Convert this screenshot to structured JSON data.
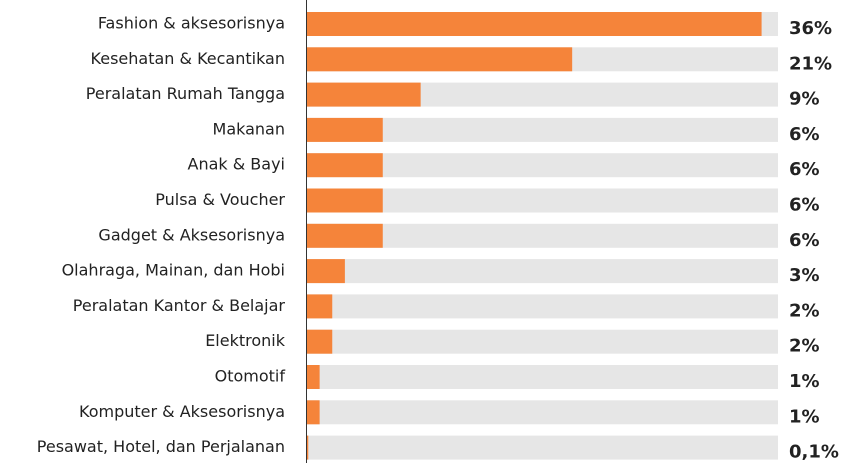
{
  "chart_data": {
    "type": "hbar",
    "categories": [
      "Fashion & aksesorisnya",
      "Kesehatan & Kecantikan",
      "Peralatan Rumah Tangga",
      "Makanan",
      "Anak & Bayi",
      "Pulsa & Voucher",
      "Gadget & Aksesorisnya",
      "Olahraga, Mainan, dan Hobi",
      "Peralatan Kantor & Belajar",
      "Elektronik",
      "Otomotif",
      "Komputer & Aksesorisnya",
      "Pesawat, Hotel, dan Perjalanan"
    ],
    "values": [
      36,
      21,
      9,
      6,
      6,
      6,
      6,
      3,
      2,
      2,
      1,
      1,
      0.1
    ],
    "value_labels": [
      "36%",
      "21%",
      "9%",
      "6%",
      "6%",
      "6%",
      "6%",
      "3%",
      "2%",
      "2%",
      "1%",
      "1%",
      "0,1%"
    ],
    "color": "#f5843a",
    "track_color": "#e6e6e6",
    "xlim": [
      0,
      37.3
    ]
  }
}
